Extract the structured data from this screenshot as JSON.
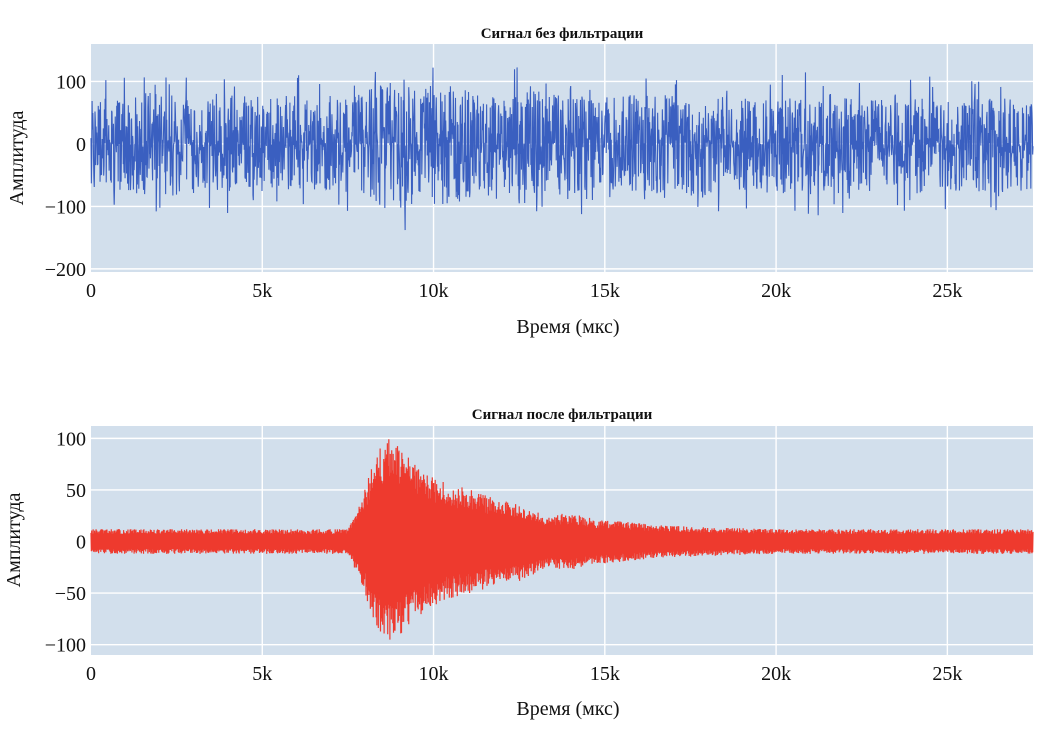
{
  "chart_data": [
    {
      "type": "line",
      "title": "Сигнал без фильтрации",
      "xlabel": "Время (мкс)",
      "ylabel": "Амплитуда",
      "xlim": [
        0,
        27500
      ],
      "ylim": [
        -205,
        160
      ],
      "xticks": [
        0,
        5000,
        10000,
        15000,
        20000,
        25000
      ],
      "xtick_labels": [
        "0",
        "5k",
        "10k",
        "15k",
        "20k",
        "25k"
      ],
      "yticks": [
        -200,
        -100,
        0,
        100
      ],
      "ytick_labels": [
        "−200",
        "−100",
        "0",
        "100"
      ],
      "grid": true,
      "series": [
        {
          "color": "#3a5fc0",
          "x": [
            0,
            2000,
            4000,
            6000,
            7800,
            8200,
            8500,
            9000,
            10000,
            11500,
            13000,
            15000,
            17000,
            19000,
            21000,
            23000,
            25000,
            27500
          ],
          "envelope": [
            100,
            120,
            115,
            110,
            110,
            140,
            160,
            150,
            140,
            130,
            120,
            110,
            115,
            110,
            115,
            110,
            115,
            110
          ]
        }
      ]
    },
    {
      "type": "line",
      "title": "Сигнал после фильтрации",
      "xlabel": "Время (мкс)",
      "ylabel": "Амплитуда",
      "xlim": [
        0,
        27500
      ],
      "ylim": [
        -110,
        112
      ],
      "xticks": [
        0,
        5000,
        10000,
        15000,
        20000,
        25000
      ],
      "xtick_labels": [
        "0",
        "5k",
        "10k",
        "15k",
        "20k",
        "25k"
      ],
      "yticks": [
        -100,
        -50,
        0,
        50,
        100
      ],
      "ytick_labels": [
        "−100",
        "−50",
        "0",
        "50",
        "100"
      ],
      "grid": true,
      "series": [
        {
          "color": "#ee3a2e",
          "x": [
            0,
            7500,
            7900,
            8300,
            8700,
            9200,
            9800,
            10500,
            11200,
            11900,
            12600,
            13300,
            14000,
            14700,
            15400,
            16500,
            18000,
            20000,
            23000,
            27500
          ],
          "envelope": [
            12,
            12,
            40,
            85,
            100,
            85,
            65,
            55,
            50,
            40,
            38,
            25,
            28,
            22,
            20,
            16,
            14,
            12,
            12,
            12
          ]
        }
      ]
    }
  ]
}
